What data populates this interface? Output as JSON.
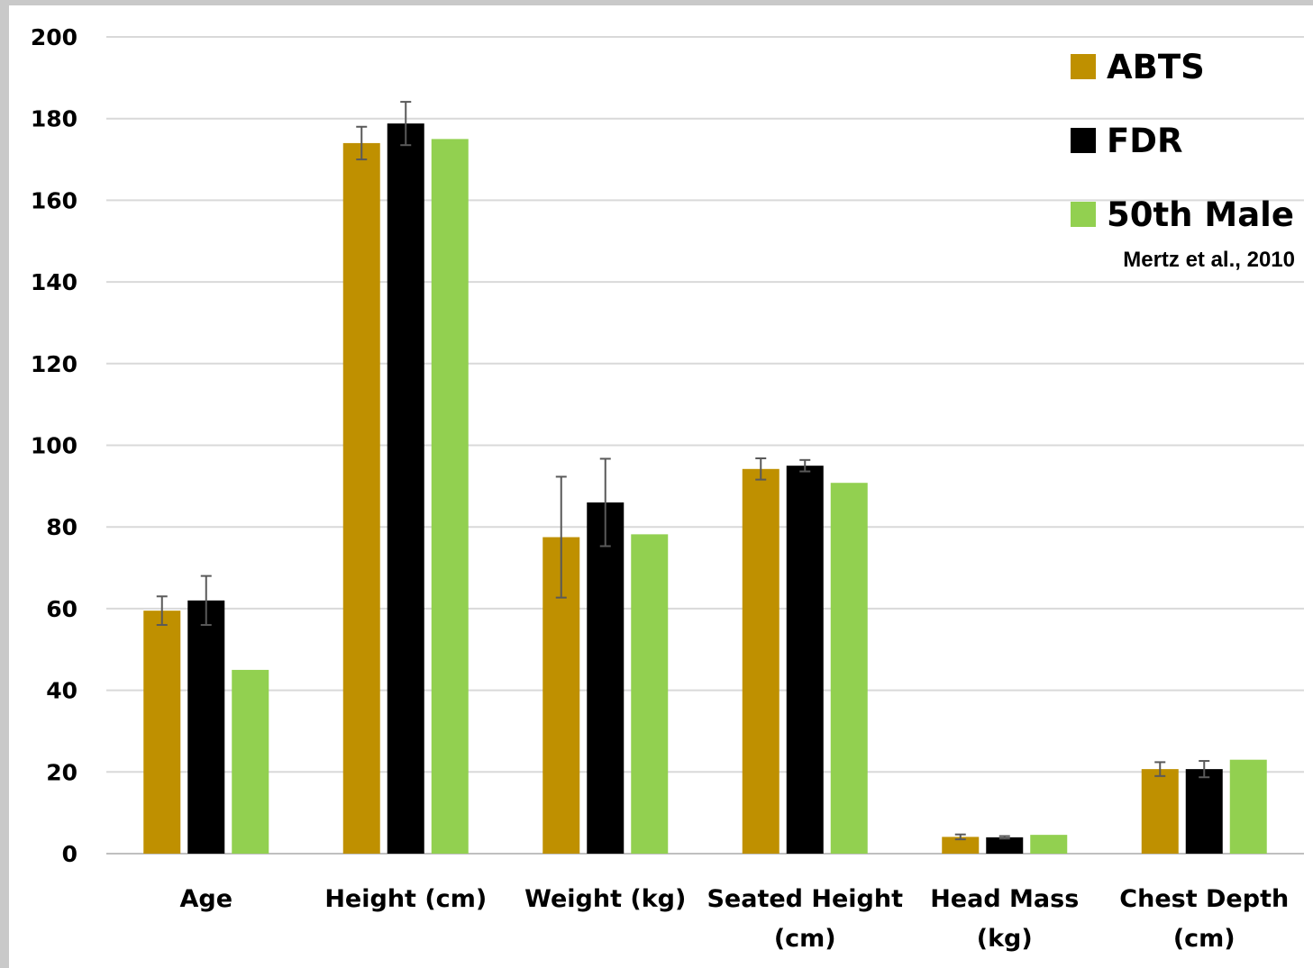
{
  "chart_data": {
    "type": "bar",
    "categories": [
      [
        "Age"
      ],
      [
        "Height (cm)"
      ],
      [
        "Weight (kg)"
      ],
      [
        "Seated Height",
        "(cm)"
      ],
      [
        "Head Mass",
        "(kg)"
      ],
      [
        "Chest Depth",
        "(cm)"
      ]
    ],
    "series": [
      {
        "name": "ABTS",
        "color": "#bf9000",
        "values": [
          59.5,
          174,
          77.5,
          94.2,
          4.1,
          20.7
        ],
        "errors": [
          3.5,
          4,
          14.8,
          2.6,
          0.6,
          1.7
        ]
      },
      {
        "name": "FDR",
        "color": "#000000",
        "values": [
          62,
          178.8,
          86,
          95,
          4,
          20.7
        ],
        "errors": [
          6,
          5.3,
          10.7,
          1.4,
          0.3,
          2
        ]
      },
      {
        "name": "50th Male",
        "color": "#92d050",
        "values": [
          45,
          175,
          78.2,
          90.8,
          4.6,
          23
        ]
      }
    ],
    "ylim": [
      0,
      200
    ],
    "yticks": [
      0,
      20,
      40,
      60,
      80,
      100,
      120,
      140,
      160,
      180,
      200
    ],
    "grid": true,
    "legend": "top-right",
    "annotation": "Mertz et al., 2010"
  }
}
